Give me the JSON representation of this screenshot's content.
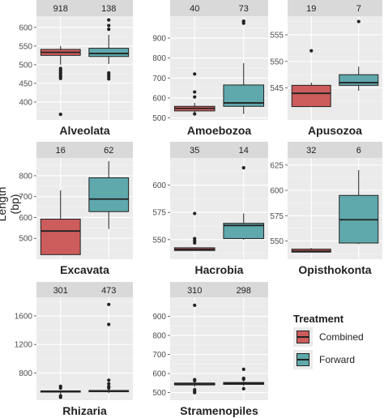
{
  "figure": {
    "ylabel": "Length (bp)",
    "legend_title": "Treatment",
    "legend": [
      {
        "label": "Combined",
        "color": "#cd5c5c"
      },
      {
        "label": "Forward",
        "color": "#5fa9ad"
      }
    ]
  },
  "chart_data": [
    {
      "type": "boxplot",
      "title": "Alveolata",
      "ylim": [
        352,
        630
      ],
      "yticks": [
        400,
        450,
        500,
        550,
        600
      ],
      "groups": [
        {
          "treatment": "Combined",
          "n": "918",
          "min": 500,
          "q1": 525,
          "median": 533,
          "q3": 541,
          "max": 550,
          "outliers": [
            490,
            485,
            480,
            476,
            471,
            467,
            463,
            367
          ]
        },
        {
          "treatment": "Forward",
          "n": "138",
          "min": 502,
          "q1": 522,
          "median": 530,
          "q3": 544,
          "max": 580,
          "outliers": [
            620,
            605,
            595,
            478,
            473,
            468,
            462
          ]
        }
      ]
    },
    {
      "type": "boxplot",
      "title": "Amoebozoa",
      "ylim": [
        490,
        1010
      ],
      "yticks": [
        500,
        600,
        700,
        800,
        900
      ],
      "groups": [
        {
          "treatment": "Combined",
          "n": "40",
          "min": 520,
          "q1": 535,
          "median": 548,
          "q3": 558,
          "max": 575,
          "outliers": [
            720,
            630,
            605,
            520
          ]
        },
        {
          "treatment": "Forward",
          "n": "73",
          "min": 520,
          "q1": 558,
          "median": 575,
          "q3": 665,
          "max": 775,
          "outliers": [
            985,
            975
          ]
        }
      ]
    },
    {
      "type": "boxplot",
      "title": "Apusozoa",
      "ylim": [
        539,
        558.5
      ],
      "yticks": [
        545,
        550,
        555
      ],
      "groups": [
        {
          "treatment": "Combined",
          "n": "19",
          "min": 541.5,
          "q1": 541.5,
          "median": 544,
          "q3": 545.5,
          "max": 546,
          "outliers": [
            552
          ]
        },
        {
          "treatment": "Forward",
          "n": "7",
          "min": 544.5,
          "q1": 545.5,
          "median": 546,
          "q3": 547.5,
          "max": 549,
          "outliers": [
            557.5
          ]
        }
      ]
    },
    {
      "type": "boxplot",
      "title": "Excavata",
      "ylim": [
        400,
        885
      ],
      "yticks": [
        500,
        600,
        700,
        800
      ],
      "groups": [
        {
          "treatment": "Combined",
          "n": "16",
          "min": 420,
          "q1": 422,
          "median": 535,
          "q3": 592,
          "max": 730,
          "outliers": []
        },
        {
          "treatment": "Forward",
          "n": "62",
          "min": 545,
          "q1": 628,
          "median": 688,
          "q3": 790,
          "max": 870,
          "outliers": []
        }
      ]
    },
    {
      "type": "boxplot",
      "title": "Hacrobia",
      "ylim": [
        532,
        625
      ],
      "yticks": [
        550,
        575,
        600
      ],
      "groups": [
        {
          "treatment": "Combined",
          "n": "35",
          "min": 540,
          "q1": 540,
          "median": 541,
          "q3": 542.5,
          "max": 543,
          "outliers": [
            574,
            551,
            549,
            547
          ]
        },
        {
          "treatment": "Forward",
          "n": "14",
          "min": 550,
          "q1": 551,
          "median": 563,
          "q3": 565,
          "max": 574,
          "outliers": [
            616
          ]
        }
      ]
    },
    {
      "type": "boxplot",
      "title": "Opisthokonta",
      "ylim": [
        532,
        632
      ],
      "yticks": [
        550,
        575,
        600,
        625
      ],
      "groups": [
        {
          "treatment": "Combined",
          "n": "32",
          "min": 539,
          "q1": 539,
          "median": 540,
          "q3": 542,
          "max": 543,
          "outliers": []
        },
        {
          "treatment": "Forward",
          "n": "6",
          "min": 547,
          "q1": 548,
          "median": 571,
          "q3": 595,
          "max": 620,
          "outliers": []
        }
      ]
    },
    {
      "type": "boxplot",
      "title": "Rhizaria",
      "ylim": [
        420,
        1860
      ],
      "yticks": [
        800,
        1200,
        1600
      ],
      "groups": [
        {
          "treatment": "Combined",
          "n": "301",
          "min": 500,
          "q1": 540,
          "median": 545,
          "q3": 550,
          "max": 560,
          "outliers": [
            615,
            590,
            480,
            460
          ]
        },
        {
          "treatment": "Forward",
          "n": "473",
          "min": 520,
          "q1": 545,
          "median": 550,
          "q3": 555,
          "max": 570,
          "outliers": [
            1760,
            1480,
            700,
            650,
            610,
            590
          ]
        }
      ]
    },
    {
      "type": "boxplot",
      "title": "Stramenopiles",
      "ylim": [
        460,
        1000
      ],
      "yticks": [
        500,
        600,
        700,
        800,
        900
      ],
      "groups": [
        {
          "treatment": "Combined",
          "n": "310",
          "min": 530,
          "q1": 540,
          "median": 545,
          "q3": 550,
          "max": 555,
          "outliers": [
            958,
            568,
            562,
            515,
            505,
            500
          ]
        },
        {
          "treatment": "Forward",
          "n": "298",
          "min": 535,
          "q1": 543,
          "median": 548,
          "q3": 553,
          "max": 560,
          "outliers": [
            622,
            575,
            570,
            520
          ]
        }
      ]
    }
  ]
}
